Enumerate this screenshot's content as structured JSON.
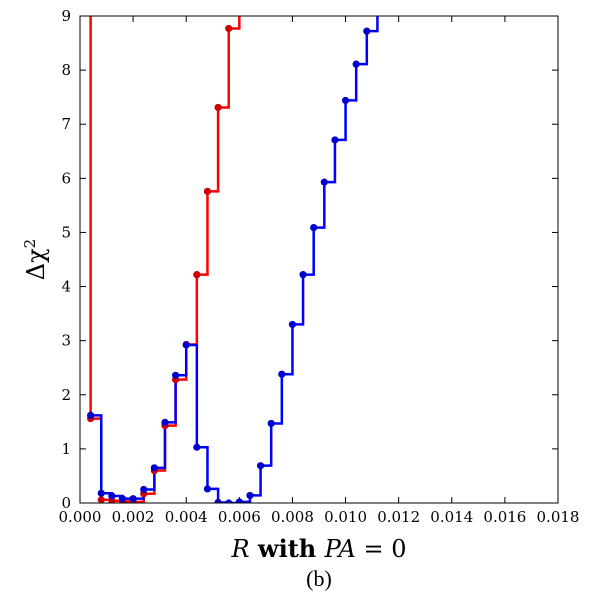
{
  "chart_data": {
    "type": "line",
    "step": true,
    "caption": "(b)",
    "xlabel": {
      "italic_var": "R",
      "bold_text": " with ",
      "italic_expr": "PA",
      "suffix": " = 0"
    },
    "ylabel": {
      "prefix": "Δχ",
      "superscript": "2"
    },
    "xlim": [
      0.0,
      0.018
    ],
    "ylim": [
      0,
      9
    ],
    "x_ticks": [
      "0.000",
      "0.002",
      "0.004",
      "0.006",
      "0.008",
      "0.010",
      "0.012",
      "0.014",
      "0.016",
      "0.018"
    ],
    "y_ticks": [
      "0",
      "1",
      "2",
      "3",
      "4",
      "5",
      "6",
      "7",
      "8",
      "9"
    ],
    "grid": false,
    "series": [
      {
        "color": "#ff0000",
        "marker_color": "#cc0000",
        "points": [
          [
            0.0,
            9.5
          ],
          [
            0.0004,
            1.56
          ],
          [
            0.0008,
            0.06
          ],
          [
            0.0012,
            0.04
          ],
          [
            0.0016,
            0.03
          ],
          [
            0.002,
            0.02
          ],
          [
            0.0024,
            0.17
          ],
          [
            0.0028,
            0.6
          ],
          [
            0.0032,
            1.43
          ],
          [
            0.0036,
            2.28
          ],
          [
            0.004,
            2.93
          ],
          [
            0.0044,
            4.22
          ],
          [
            0.0048,
            5.76
          ],
          [
            0.0052,
            7.31
          ],
          [
            0.0056,
            8.77
          ],
          [
            0.006,
            9.5
          ]
        ]
      },
      {
        "color": "#0000ff",
        "marker_color": "#0000cc",
        "points": [
          [
            0.0004,
            1.62
          ],
          [
            0.0008,
            0.18
          ],
          [
            0.0012,
            0.13
          ],
          [
            0.0016,
            0.08
          ],
          [
            0.002,
            0.08
          ],
          [
            0.0024,
            0.25
          ],
          [
            0.0028,
            0.65
          ],
          [
            0.0032,
            1.49
          ],
          [
            0.0036,
            2.36
          ],
          [
            0.004,
            2.92
          ],
          [
            0.0044,
            1.03
          ],
          [
            0.0048,
            0.26
          ],
          [
            0.0052,
            0.01
          ],
          [
            0.0056,
            0.0
          ],
          [
            0.006,
            0.02
          ],
          [
            0.0064,
            0.14
          ],
          [
            0.0068,
            0.69
          ],
          [
            0.0072,
            1.47
          ],
          [
            0.0076,
            2.38
          ],
          [
            0.008,
            3.3
          ],
          [
            0.0084,
            4.22
          ],
          [
            0.0088,
            5.09
          ],
          [
            0.0092,
            5.93
          ],
          [
            0.0096,
            6.71
          ],
          [
            0.01,
            7.44
          ],
          [
            0.0104,
            8.11
          ],
          [
            0.0108,
            8.72
          ],
          [
            0.0112,
            9.5
          ]
        ]
      }
    ]
  }
}
